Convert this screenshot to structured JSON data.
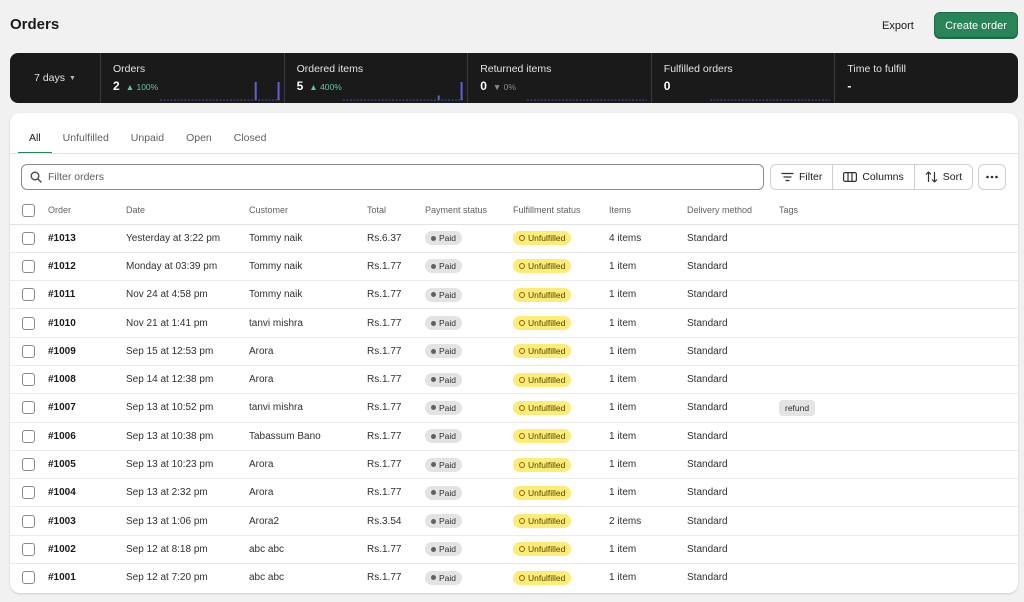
{
  "header": {
    "title": "Orders",
    "export_label": "Export",
    "create_label": "Create order"
  },
  "stats": {
    "range_label": "7 days",
    "items": [
      {
        "label": "Orders",
        "value": "2",
        "change": "100%",
        "direction": "up",
        "sparkline": [
          0,
          0,
          0,
          0,
          0,
          0,
          0,
          0,
          0,
          0,
          0,
          0,
          0,
          0,
          0,
          0,
          0,
          0,
          0,
          0,
          0,
          0,
          0,
          0,
          0,
          0,
          0,
          0,
          0,
          0,
          0,
          0,
          0,
          1,
          0,
          0,
          0,
          0,
          0,
          0,
          0,
          1
        ]
      },
      {
        "label": "Ordered items",
        "value": "5",
        "change": "400%",
        "direction": "up",
        "sparkline": [
          0,
          0,
          0,
          0,
          0,
          0,
          0,
          0,
          0,
          0,
          0,
          0,
          0,
          0,
          0,
          0,
          0,
          0,
          0,
          0,
          0,
          0,
          0,
          0,
          0,
          0,
          0,
          0,
          0,
          0,
          0,
          0,
          0,
          1,
          0,
          0,
          0,
          0,
          0,
          0,
          0,
          4
        ]
      },
      {
        "label": "Returned items",
        "value": "0",
        "change": "0%",
        "direction": "down",
        "sparkline": []
      },
      {
        "label": "Fulfilled orders",
        "value": "0",
        "change": "",
        "direction": "none",
        "sparkline": []
      },
      {
        "label": "Time to fulfill",
        "value": "-",
        "change": "",
        "direction": "none",
        "sparkline": []
      }
    ],
    "colors": {
      "up": "#5ec99b",
      "neutral": "#8a8a8a",
      "bar": "#5a64d6"
    }
  },
  "tabs": [
    {
      "label": "All",
      "active": true
    },
    {
      "label": "Unfulfilled",
      "active": false
    },
    {
      "label": "Unpaid",
      "active": false
    },
    {
      "label": "Open",
      "active": false
    },
    {
      "label": "Closed",
      "active": false
    }
  ],
  "toolbar": {
    "search_placeholder": "Filter orders",
    "filter_label": "Filter",
    "columns_label": "Columns",
    "sort_label": "Sort"
  },
  "table": {
    "columns": [
      "Order",
      "Date",
      "Customer",
      "Total",
      "Payment status",
      "Fulfillment status",
      "Items",
      "Delivery method",
      "Tags"
    ],
    "rows": [
      {
        "order": "#1013",
        "date": "Yesterday at 3:22 pm",
        "customer": "Tommy naik",
        "total": "Rs.6.37",
        "payment": "Paid",
        "fulfillment": "Unfulfilled",
        "items": "4 items",
        "delivery": "Standard",
        "tags": ""
      },
      {
        "order": "#1012",
        "date": "Monday at 03:39 pm",
        "customer": "Tommy naik",
        "total": "Rs.1.77",
        "payment": "Paid",
        "fulfillment": "Unfulfilled",
        "items": "1 item",
        "delivery": "Standard",
        "tags": ""
      },
      {
        "order": "#1011",
        "date": "Nov 24 at 4:58 pm",
        "customer": "Tommy naik",
        "total": "Rs.1.77",
        "payment": "Paid",
        "fulfillment": "Unfulfilled",
        "items": "1 item",
        "delivery": "Standard",
        "tags": ""
      },
      {
        "order": "#1010",
        "date": "Nov 21 at 1:41 pm",
        "customer": "tanvi mishra",
        "total": "Rs.1.77",
        "payment": "Paid",
        "fulfillment": "Unfulfilled",
        "items": "1 item",
        "delivery": "Standard",
        "tags": ""
      },
      {
        "order": "#1009",
        "date": "Sep 15 at 12:53 pm",
        "customer": "Arora",
        "total": "Rs.1.77",
        "payment": "Paid",
        "fulfillment": "Unfulfilled",
        "items": "1 item",
        "delivery": "Standard",
        "tags": ""
      },
      {
        "order": "#1008",
        "date": "Sep 14 at 12:38 pm",
        "customer": "Arora",
        "total": "Rs.1.77",
        "payment": "Paid",
        "fulfillment": "Unfulfilled",
        "items": "1 item",
        "delivery": "Standard",
        "tags": ""
      },
      {
        "order": "#1007",
        "date": "Sep 13 at 10:52 pm",
        "customer": "tanvi mishra",
        "total": "Rs.1.77",
        "payment": "Paid",
        "fulfillment": "Unfulfilled",
        "items": "1 item",
        "delivery": "Standard",
        "tags": "refund"
      },
      {
        "order": "#1006",
        "date": "Sep 13 at 10:38 pm",
        "customer": "Tabassum Bano",
        "total": "Rs.1.77",
        "payment": "Paid",
        "fulfillment": "Unfulfilled",
        "items": "1 item",
        "delivery": "Standard",
        "tags": ""
      },
      {
        "order": "#1005",
        "date": "Sep 13 at 10:23 pm",
        "customer": "Arora",
        "total": "Rs.1.77",
        "payment": "Paid",
        "fulfillment": "Unfulfilled",
        "items": "1 item",
        "delivery": "Standard",
        "tags": ""
      },
      {
        "order": "#1004",
        "date": "Sep 13 at 2:32 pm",
        "customer": "Arora",
        "total": "Rs.1.77",
        "payment": "Paid",
        "fulfillment": "Unfulfilled",
        "items": "1 item",
        "delivery": "Standard",
        "tags": ""
      },
      {
        "order": "#1003",
        "date": "Sep 13 at 1:06 pm",
        "customer": "Arora2",
        "total": "Rs.3.54",
        "payment": "Paid",
        "fulfillment": "Unfulfilled",
        "items": "2 items",
        "delivery": "Standard",
        "tags": ""
      },
      {
        "order": "#1002",
        "date": "Sep 12 at 8:18 pm",
        "customer": "abc abc",
        "total": "Rs.1.77",
        "payment": "Paid",
        "fulfillment": "Unfulfilled",
        "items": "1 item",
        "delivery": "Standard",
        "tags": ""
      },
      {
        "order": "#1001",
        "date": "Sep 12 at 7:20 pm",
        "customer": "abc abc",
        "total": "Rs.1.77",
        "payment": "Paid",
        "fulfillment": "Unfulfilled",
        "items": "1 item",
        "delivery": "Standard",
        "tags": ""
      }
    ]
  }
}
